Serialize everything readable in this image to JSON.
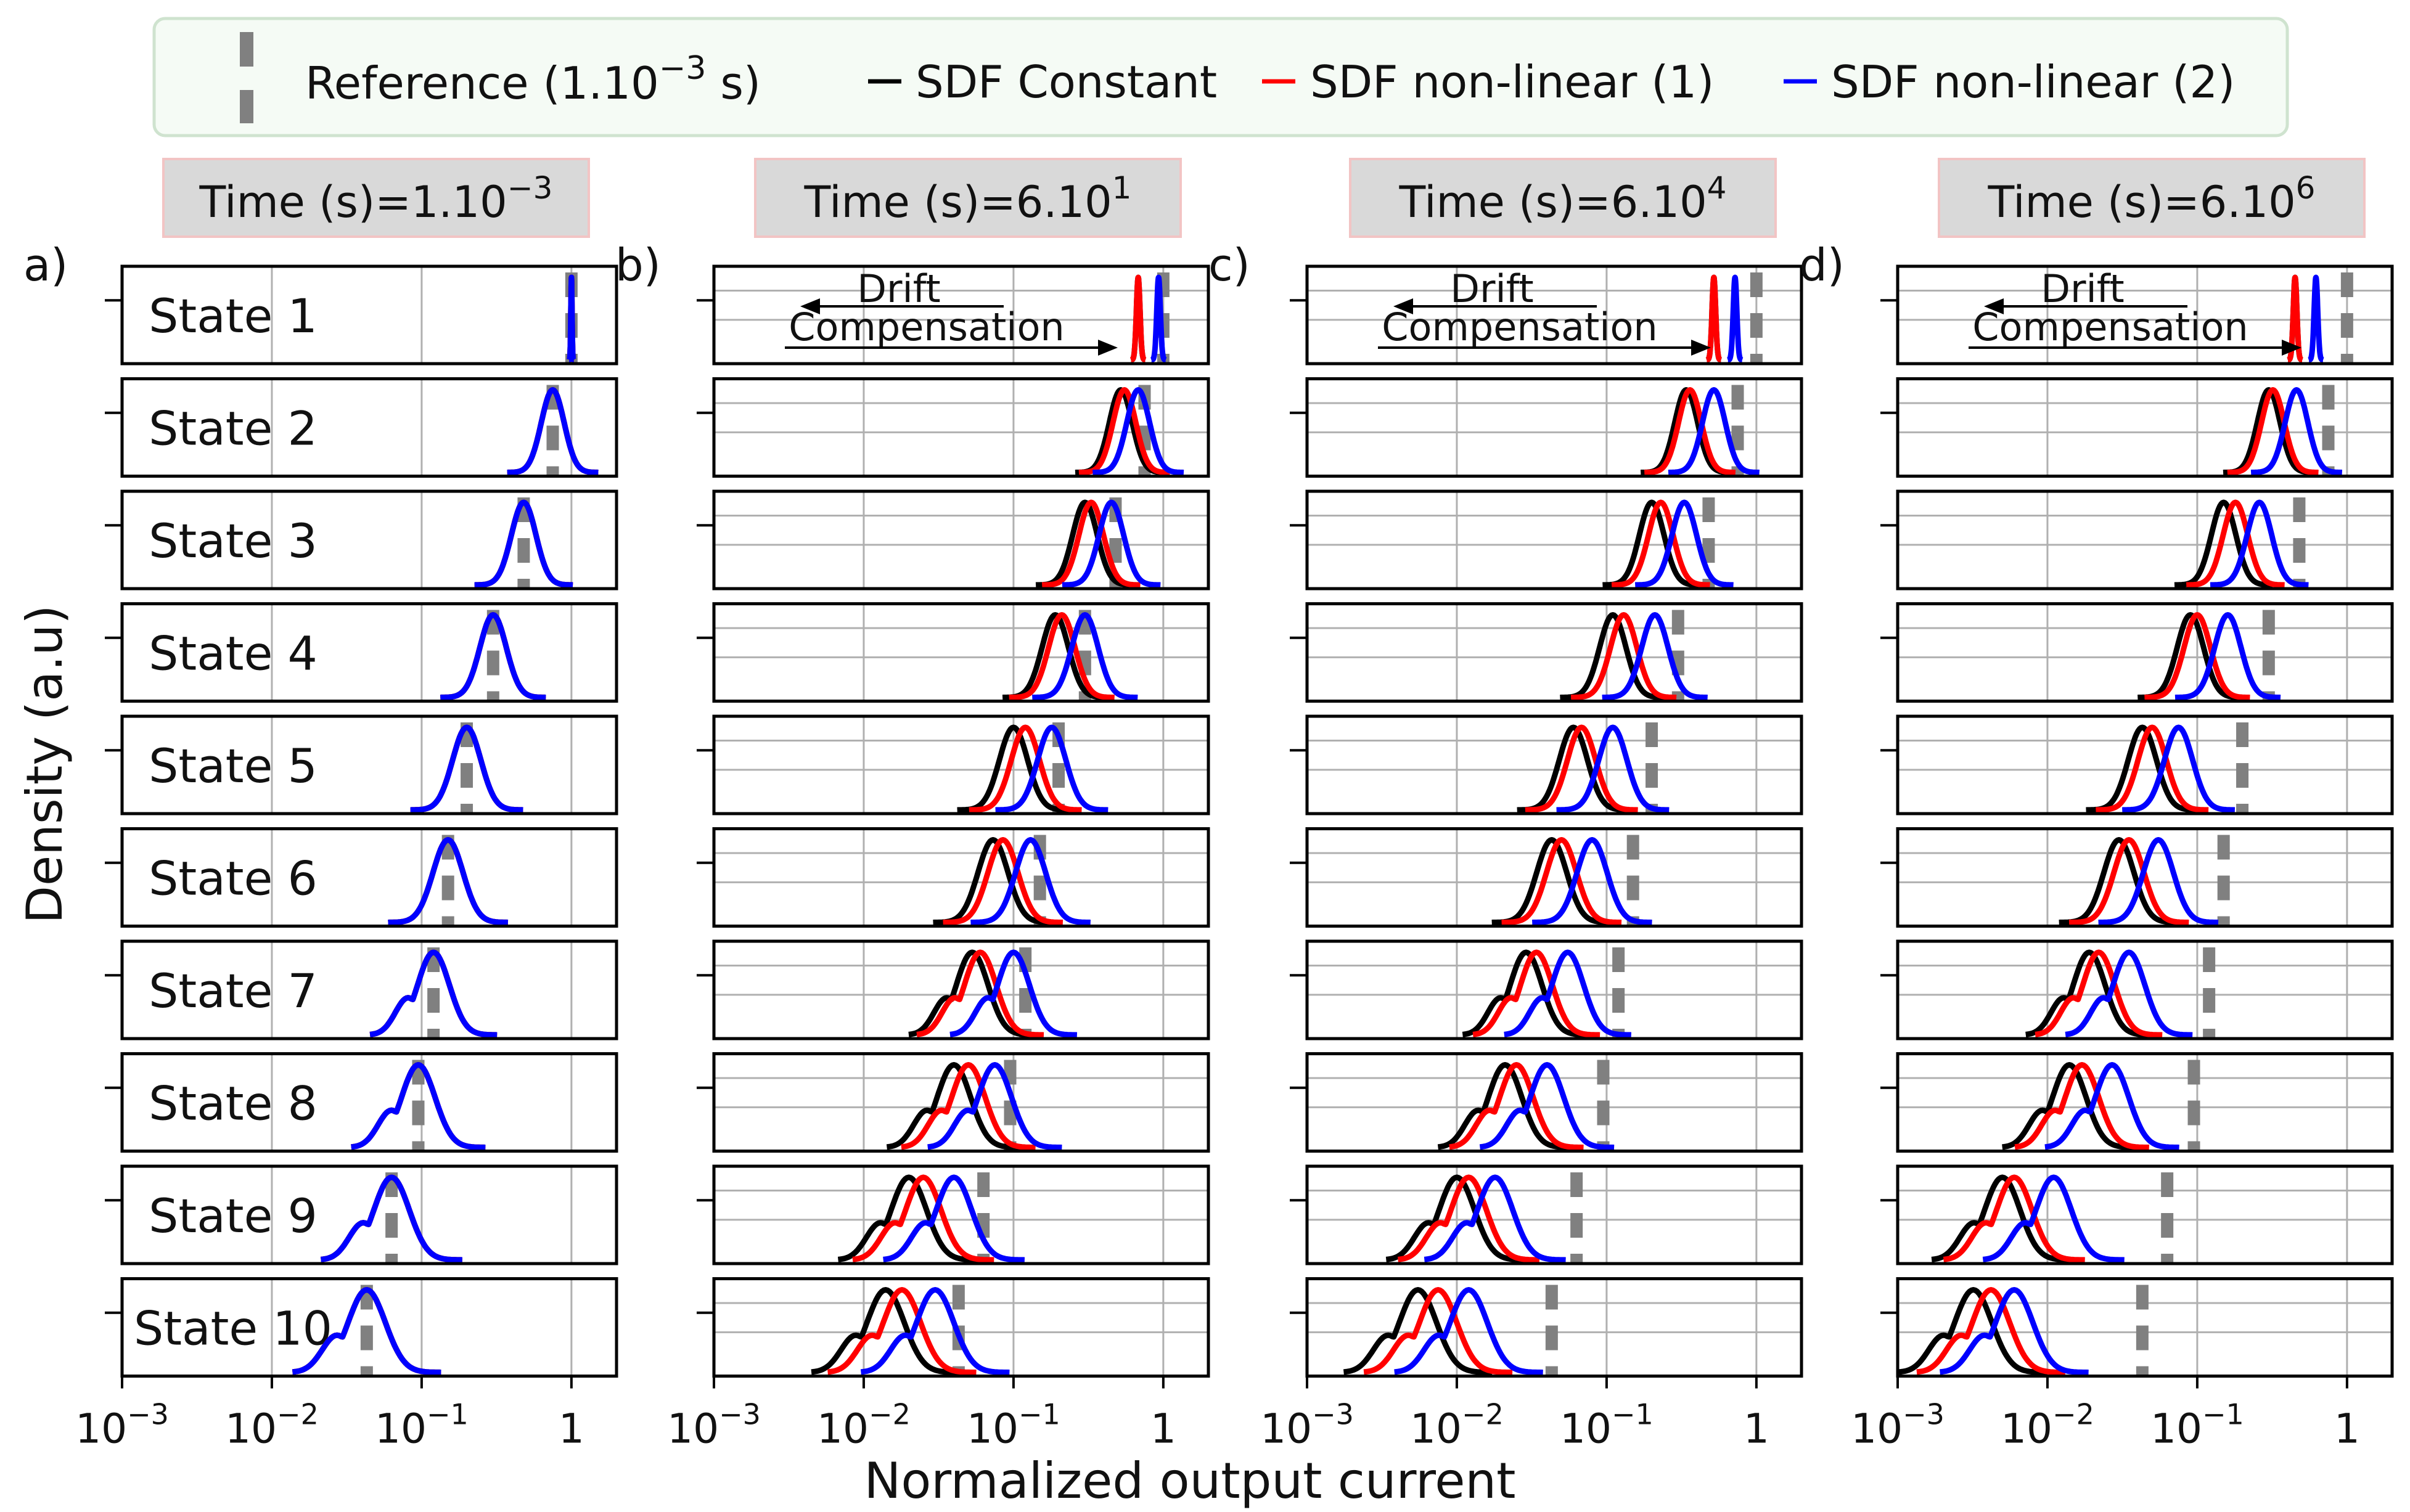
{
  "legend": {
    "entries": [
      {
        "label": "Reference (1.10",
        "sup": "−3",
        "tail": " s)",
        "color": "#808080",
        "style": "dashed-thick"
      },
      {
        "label": "SDF Constant",
        "color": "#000000",
        "style": "solid"
      },
      {
        "label": "SDF non-linear (1)",
        "color": "#ff0000",
        "style": "solid"
      },
      {
        "label": "SDF non-linear (2)",
        "color": "#0000ff",
        "style": "solid"
      }
    ]
  },
  "y_label": "Density (a.u)",
  "x_label": "Normalized output current",
  "colors": {
    "reference": "#808080",
    "constant": "#000000",
    "nl1": "#ff0000",
    "nl2": "#0000ff",
    "title_bg": "#d9d9d9",
    "title_border": "#f2c4c4",
    "legend_bg": "#f5fbf5",
    "legend_border": "#cfe3cf",
    "grid": "#b0b0b0"
  },
  "annotations": {
    "drift": "Drift",
    "compensation": "Compensation"
  },
  "chart_data": {
    "type": "density",
    "x_scale": "log",
    "xlim": [
      0.001,
      2
    ],
    "x_ticks": [
      {
        "v": 0.001,
        "base": "10",
        "exp": "−3"
      },
      {
        "v": 0.01,
        "base": "10",
        "exp": "−2"
      },
      {
        "v": 0.1,
        "base": "10",
        "exp": "−1"
      },
      {
        "v": 1,
        "base": "1",
        "exp": ""
      }
    ],
    "states": [
      "State 1",
      "State 2",
      "State 3",
      "State 4",
      "State 5",
      "State 6",
      "State 7",
      "State 8",
      "State 9",
      "State 10"
    ],
    "reference": [
      1.0,
      0.75,
      0.48,
      0.3,
      0.2,
      0.15,
      0.12,
      0.095,
      0.063,
      0.043
    ],
    "panels": [
      {
        "letter": "a)",
        "time_label": "Time (s)=1.10",
        "time_sup": "−3",
        "drift": false,
        "constant": [
          1.0,
          0.75,
          0.48,
          0.3,
          0.2,
          0.15,
          0.12,
          0.095,
          0.063,
          0.043
        ],
        "nl1": [
          1.0,
          0.75,
          0.48,
          0.3,
          0.2,
          0.15,
          0.12,
          0.095,
          0.063,
          0.043
        ],
        "nl2": [
          1.0,
          0.75,
          0.48,
          0.3,
          0.2,
          0.15,
          0.12,
          0.095,
          0.063,
          0.043
        ]
      },
      {
        "letter": "b)",
        "time_label": "Time (s)=6.10",
        "time_sup": "1",
        "drift": true,
        "constant": [
          0.68,
          0.52,
          0.3,
          0.19,
          0.1,
          0.073,
          0.053,
          0.04,
          0.02,
          0.014
        ],
        "nl1": [
          0.68,
          0.55,
          0.33,
          0.21,
          0.12,
          0.085,
          0.06,
          0.05,
          0.025,
          0.018
        ],
        "nl2": [
          0.93,
          0.68,
          0.45,
          0.3,
          0.18,
          0.13,
          0.1,
          0.075,
          0.04,
          0.03
        ]
      },
      {
        "letter": "c)",
        "time_label": "Time (s)=6.10",
        "time_sup": "4",
        "drift": true,
        "constant": [
          0.52,
          0.34,
          0.2,
          0.11,
          0.06,
          0.043,
          0.029,
          0.021,
          0.01,
          0.0055
        ],
        "nl1": [
          0.52,
          0.36,
          0.23,
          0.13,
          0.068,
          0.05,
          0.034,
          0.025,
          0.012,
          0.0075
        ],
        "nl2": [
          0.72,
          0.52,
          0.33,
          0.21,
          0.11,
          0.08,
          0.055,
          0.04,
          0.018,
          0.012
        ]
      },
      {
        "letter": "d)",
        "time_label": "Time (s)=6.10",
        "time_sup": "6",
        "drift": true,
        "constant": [
          0.45,
          0.3,
          0.15,
          0.09,
          0.043,
          0.03,
          0.019,
          0.014,
          0.005,
          0.0032
        ],
        "nl1": [
          0.45,
          0.32,
          0.18,
          0.1,
          0.05,
          0.035,
          0.022,
          0.017,
          0.006,
          0.0042
        ],
        "nl2": [
          0.62,
          0.46,
          0.26,
          0.16,
          0.075,
          0.055,
          0.035,
          0.027,
          0.011,
          0.006
        ]
      }
    ]
  }
}
